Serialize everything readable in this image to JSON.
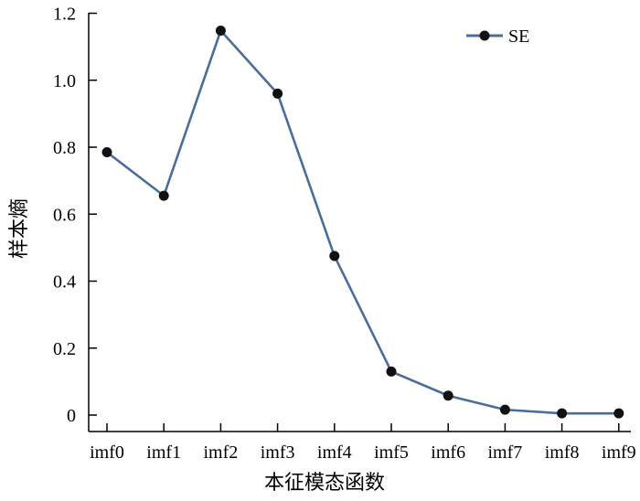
{
  "chart_data": {
    "type": "line",
    "categories": [
      "imf0",
      "imf1",
      "imf2",
      "imf3",
      "imf4",
      "imf5",
      "imf6",
      "imf7",
      "imf8",
      "imf9"
    ],
    "series": [
      {
        "name": "SE",
        "values": [
          0.785,
          0.655,
          1.148,
          0.96,
          0.475,
          0.13,
          0.058,
          0.016,
          0.005,
          0.005
        ]
      }
    ],
    "xlabel": "本征模态函数",
    "ylabel": "样本熵",
    "ylim": [
      0,
      1.2
    ],
    "yticks": [
      0,
      0.2,
      0.4,
      0.6,
      0.8,
      1.0,
      1.2
    ],
    "ytick_labels": [
      "0",
      "0.2",
      "0.4",
      "0.6",
      "0.8",
      "1.0",
      "1.2"
    ],
    "grid": false,
    "legend": "top-right",
    "colors": {
      "line": "#4a6d99",
      "marker": "#111111",
      "axis": "#000000"
    }
  }
}
